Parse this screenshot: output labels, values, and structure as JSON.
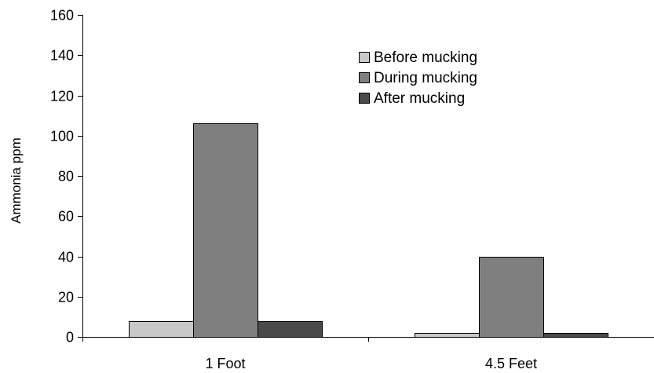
{
  "chart_data": {
    "type": "bar",
    "title": "",
    "xlabel": "",
    "ylabel": "Ammonia ppm",
    "ylim": [
      0,
      160
    ],
    "yticks": [
      0,
      20,
      40,
      60,
      80,
      100,
      120,
      140,
      160
    ],
    "grid": false,
    "legend_position": "top-right",
    "categories": [
      "1 Foot",
      "4.5 Feet"
    ],
    "series": [
      {
        "name": "Before mucking",
        "color": "#c8c8c8",
        "values": [
          8,
          2
        ]
      },
      {
        "name": "During mucking",
        "color": "#7f7f7f",
        "values": [
          106,
          40
        ]
      },
      {
        "name": "After mucking",
        "color": "#4a4a4a",
        "values": [
          8,
          2
        ]
      }
    ]
  }
}
